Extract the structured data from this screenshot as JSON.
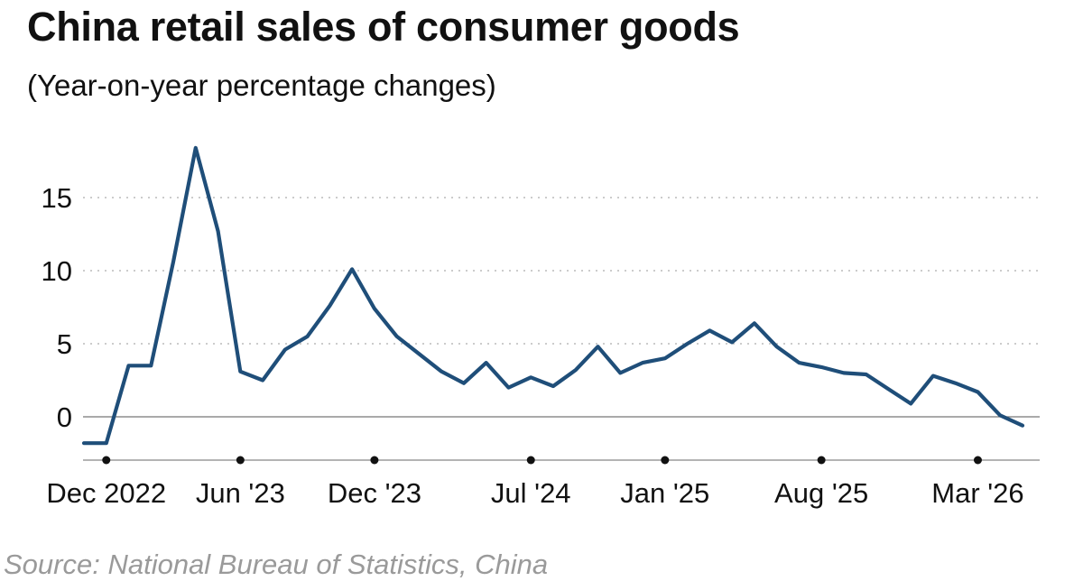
{
  "title": "China retail sales of consumer goods",
  "subtitle": "(Year-on-year percentage changes)",
  "source": "Source: National Bureau of Statistics, China",
  "colors": {
    "line": "#1f4e79",
    "grid": "#bbbbbb",
    "axis": "#888888",
    "text": "#111111"
  },
  "chart_data": {
    "type": "line",
    "title": "China retail sales of consumer goods",
    "subtitle": "(Year-on-year percentage changes)",
    "xlabel": "",
    "ylabel": "",
    "ylim": [
      -3,
      19
    ],
    "yticks": [
      0,
      5,
      10,
      15
    ],
    "grid": "horizontal dotted",
    "x_tick_labels": [
      {
        "label": "Dec 2022",
        "month": "2022-12"
      },
      {
        "label": "Jun '23",
        "month": "2023-06"
      },
      {
        "label": "Dec '23",
        "month": "2023-12"
      },
      {
        "label": "Jul '24",
        "month": "2024-07"
      },
      {
        "label": "Jan '25",
        "month": "2025-01"
      },
      {
        "label": "Aug '25",
        "month": "2025-08"
      },
      {
        "label": "Mar '26",
        "month": "2026-03"
      }
    ],
    "series": [
      {
        "points": [
          [
            "2022-11",
            -1.8
          ],
          [
            "2022-12",
            -1.8
          ],
          [
            "2023-01",
            3.5
          ],
          [
            "2023-02",
            3.5
          ],
          [
            "2023-03",
            10.6
          ],
          [
            "2023-04",
            18.4
          ],
          [
            "2023-05",
            12.7
          ],
          [
            "2023-06",
            3.1
          ],
          [
            "2023-07",
            2.5
          ],
          [
            "2023-08",
            4.6
          ],
          [
            "2023-09",
            5.5
          ],
          [
            "2023-10",
            7.6
          ],
          [
            "2023-11",
            10.1
          ],
          [
            "2023-12",
            7.4
          ],
          [
            "2024-01",
            5.5
          ],
          [
            "2024-02",
            4.3
          ],
          [
            "2024-03",
            3.1
          ],
          [
            "2024-04",
            2.3
          ],
          [
            "2024-05",
            3.7
          ],
          [
            "2024-06",
            2.0
          ],
          [
            "2024-07",
            2.7
          ],
          [
            "2024-08",
            2.1
          ],
          [
            "2024-09",
            3.2
          ],
          [
            "2024-10",
            4.8
          ],
          [
            "2024-11",
            3.0
          ],
          [
            "2024-12",
            3.7
          ],
          [
            "2025-01",
            4.0
          ],
          [
            "2025-02",
            5.0
          ],
          [
            "2025-03",
            5.9
          ],
          [
            "2025-04",
            5.1
          ],
          [
            "2025-05",
            6.4
          ],
          [
            "2025-06",
            4.8
          ],
          [
            "2025-07",
            3.7
          ],
          [
            "2025-08",
            3.4
          ],
          [
            "2025-09",
            3.0
          ],
          [
            "2025-10",
            2.9
          ],
          [
            "2025-11",
            1.9
          ],
          [
            "2025-12",
            0.9
          ],
          [
            "2026-01",
            2.8
          ],
          [
            "2026-02",
            2.3
          ],
          [
            "2026-03",
            1.7
          ],
          [
            "2026-04",
            0.1
          ],
          [
            "2026-05",
            -0.6
          ]
        ]
      }
    ]
  }
}
